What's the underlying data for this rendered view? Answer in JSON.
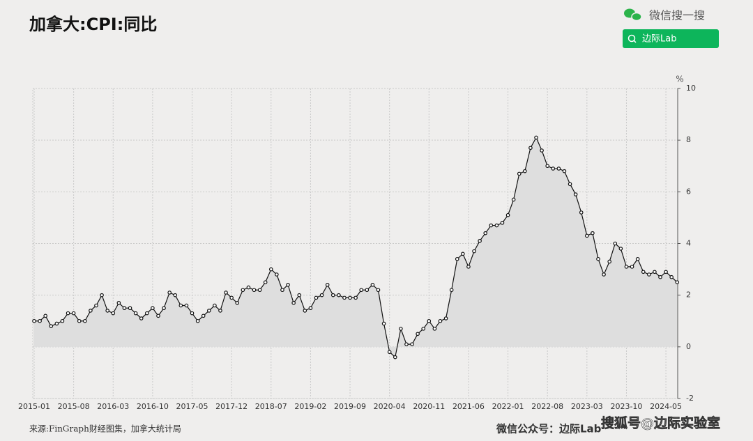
{
  "header": {
    "search_label": "微信搜一搜",
    "search_button": "边际Lab"
  },
  "chart_data": {
    "type": "line",
    "title": "加拿大:CPI:同比",
    "y_unit": "%",
    "categories": [
      "2015-01",
      null,
      null,
      null,
      null,
      null,
      null,
      "2015-08",
      null,
      null,
      null,
      null,
      null,
      null,
      "2016-03",
      null,
      null,
      null,
      null,
      null,
      null,
      "2016-10",
      null,
      null,
      null,
      null,
      null,
      null,
      "2017-05",
      null,
      null,
      null,
      null,
      null,
      null,
      "2017-12",
      null,
      null,
      null,
      null,
      null,
      null,
      "2018-07",
      null,
      null,
      null,
      null,
      null,
      null,
      "2019-02",
      null,
      null,
      null,
      null,
      null,
      null,
      "2019-09",
      null,
      null,
      null,
      null,
      null,
      null,
      "2020-04",
      null,
      null,
      null,
      null,
      null,
      null,
      "2020-11",
      null,
      null,
      null,
      null,
      null,
      null,
      "2021-06",
      null,
      null,
      null,
      null,
      null,
      null,
      "2022-01",
      null,
      null,
      null,
      null,
      null,
      null,
      "2022-08",
      null,
      null,
      null,
      null,
      null,
      null,
      "2023-03",
      null,
      null,
      null,
      null,
      null,
      null,
      "2023-10",
      null,
      null,
      null,
      null,
      null,
      null,
      "2024-05",
      null,
      null
    ],
    "series": [
      {
        "color": "#111111",
        "area_color": "#dedede",
        "values": [
          1.0,
          1.0,
          1.2,
          0.8,
          0.9,
          1.0,
          1.3,
          1.3,
          1.0,
          1.0,
          1.4,
          1.6,
          2.0,
          1.4,
          1.3,
          1.7,
          1.5,
          1.5,
          1.3,
          1.1,
          1.3,
          1.5,
          1.2,
          1.5,
          2.1,
          2.0,
          1.6,
          1.6,
          1.3,
          1.0,
          1.2,
          1.4,
          1.6,
          1.4,
          2.1,
          1.9,
          1.7,
          2.2,
          2.3,
          2.2,
          2.2,
          2.5,
          3.0,
          2.8,
          2.2,
          2.4,
          1.7,
          2.0,
          1.4,
          1.5,
          1.9,
          2.0,
          2.4,
          2.0,
          2.0,
          1.9,
          1.9,
          1.9,
          2.2,
          2.2,
          2.4,
          2.2,
          0.9,
          -0.2,
          -0.4,
          0.7,
          0.1,
          0.1,
          0.5,
          0.7,
          1.0,
          0.7,
          1.0,
          1.1,
          2.2,
          3.4,
          3.6,
          3.1,
          3.7,
          4.1,
          4.4,
          4.7,
          4.7,
          4.8,
          5.1,
          5.7,
          6.7,
          6.8,
          7.7,
          8.1,
          7.6,
          7.0,
          6.9,
          6.9,
          6.8,
          6.3,
          5.9,
          5.2,
          4.3,
          4.4,
          3.4,
          2.8,
          3.3,
          4.0,
          3.8,
          3.1,
          3.1,
          3.4,
          2.9,
          2.8,
          2.9,
          2.7,
          2.9,
          2.7,
          2.5
        ]
      }
    ],
    "ylim": [
      -2,
      10
    ],
    "yticks": [
      -2,
      0,
      2,
      4,
      6,
      8,
      10
    ],
    "grid": true,
    "source": "来源:FinGraph财经图集，加拿大统计局",
    "watermark": "微信公众号：边际Lab",
    "credit": "搜狐号@边际实验室"
  }
}
